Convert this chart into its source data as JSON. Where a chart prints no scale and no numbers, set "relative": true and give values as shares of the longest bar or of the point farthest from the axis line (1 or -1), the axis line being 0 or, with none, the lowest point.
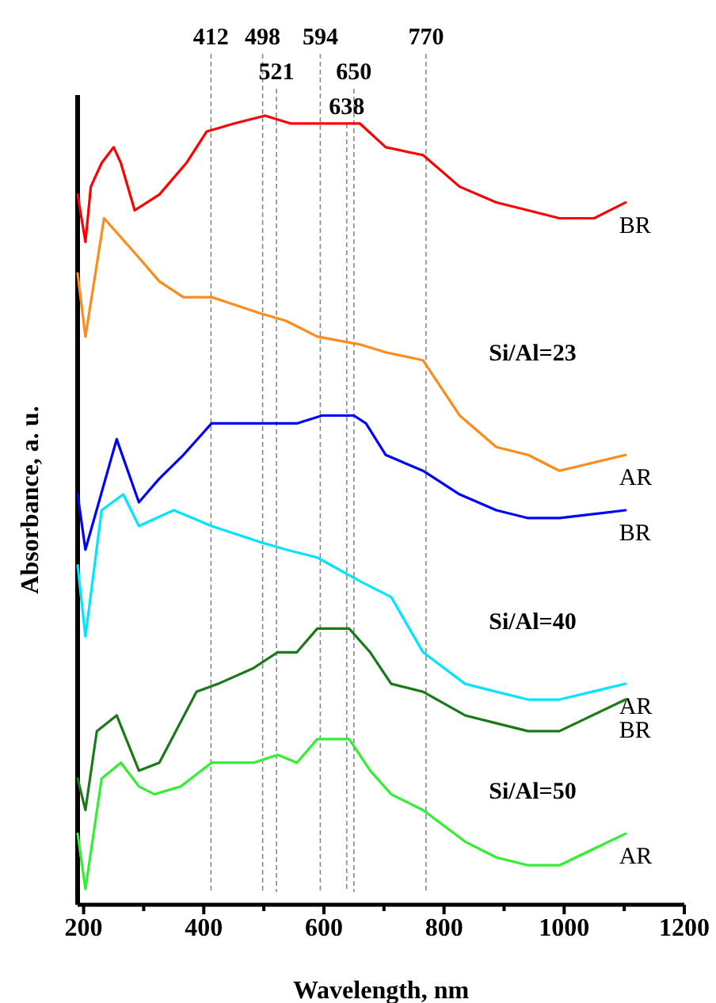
{
  "chart_data": {
    "type": "line",
    "relative": true,
    "xlabel": "Wavelength, nm",
    "ylabel": "Absorbance, a. u.",
    "xlim": [
      190,
      1200
    ],
    "xticks": [
      200,
      {
        "value": 300,
        "label": null
      },
      400,
      {
        "value": 500,
        "label": null
      },
      600,
      {
        "value": 700,
        "label": null
      },
      800,
      {
        "value": 900,
        "label": null
      },
      1000,
      {
        "value": 1100,
        "label": null
      },
      1200
    ],
    "grid": false,
    "marker": "none",
    "line_style": "solid",
    "annotations": [
      "Si/Al=23",
      "Si/Al=40",
      "Si/Al=50"
    ],
    "ref_lines": [
      {
        "axis": "x",
        "value": 412,
        "label": "412",
        "line_style": "dashed",
        "color": "#888888"
      },
      {
        "axis": "x",
        "value": 498,
        "label": "498",
        "line_style": "dashed",
        "color": "#888888"
      },
      {
        "axis": "x",
        "value": 521,
        "label": "521",
        "line_style": "dashed",
        "color": "#888888"
      },
      {
        "axis": "x",
        "value": 594,
        "label": "594",
        "line_style": "dashed",
        "color": "#888888"
      },
      {
        "axis": "x",
        "value": 650,
        "label": "650",
        "line_style": "dashed",
        "color": "#888888"
      },
      {
        "axis": "x",
        "value": 770,
        "label": "770",
        "line_style": "dashed",
        "color": "#888888"
      },
      {
        "axis": "x",
        "value": 638,
        "label": "638",
        "line_style": "dashed",
        "color": "#888888"
      }
    ],
    "series": [
      {
        "name": "BR",
        "color": "#ff0000",
        "x": [
          190,
          203,
          212,
          230,
          250,
          262,
          285,
          326,
          371,
          405,
          450,
          502,
          545,
          597,
          650,
          660,
          703,
          765,
          826,
          887,
          940,
          992,
          1050,
          1102
        ],
        "values": [
          0.9,
          0.84,
          0.91,
          0.94,
          0.96,
          0.94,
          0.88,
          0.9,
          0.94,
          0.98,
          0.99,
          1.0,
          0.99,
          0.99,
          0.99,
          0.99,
          0.96,
          0.95,
          0.91,
          0.89,
          0.88,
          0.87,
          0.87,
          0.89
        ]
      },
      {
        "name": "AR",
        "color": "#ff8c1a",
        "x": [
          190,
          203,
          234,
          292,
          326,
          366,
          413,
          492,
          537,
          589,
          660,
          703,
          765,
          826,
          887,
          940,
          992,
          1102
        ],
        "values": [
          0.8,
          0.72,
          0.87,
          0.82,
          0.79,
          0.77,
          0.77,
          0.75,
          0.74,
          0.72,
          0.71,
          0.7,
          0.69,
          0.62,
          0.58,
          0.57,
          0.55,
          0.57
        ]
      },
      {
        "name": "BR",
        "color": "#0000ff",
        "x": [
          190,
          203,
          255,
          292,
          326,
          366,
          413,
          455,
          502,
          555,
          597,
          650,
          670,
          703,
          765,
          826,
          887,
          940,
          992,
          1102
        ],
        "values": [
          0.52,
          0.45,
          0.59,
          0.51,
          0.54,
          0.57,
          0.61,
          0.61,
          0.61,
          0.61,
          0.62,
          0.62,
          0.61,
          0.57,
          0.55,
          0.52,
          0.5,
          0.49,
          0.49,
          0.5
        ]
      },
      {
        "name": "AR",
        "color": "#00e5ff",
        "x": [
          190,
          203,
          230,
          266,
          292,
          350,
          413,
          492,
          537,
          589,
          660,
          712,
          765,
          835,
          887,
          940,
          992,
          1102
        ],
        "values": [
          0.43,
          0.34,
          0.5,
          0.52,
          0.48,
          0.5,
          0.48,
          0.46,
          0.45,
          0.44,
          0.41,
          0.39,
          0.32,
          0.28,
          0.27,
          0.26,
          0.26,
          0.28
        ]
      },
      {
        "name": "BR",
        "color": "#1a7a1a",
        "x": [
          190,
          203,
          222,
          255,
          292,
          326,
          388,
          424,
          483,
          523,
          555,
          589,
          642,
          677,
          712,
          765,
          835,
          887,
          940,
          992,
          1102
        ],
        "values": [
          0.16,
          0.12,
          0.22,
          0.24,
          0.17,
          0.18,
          0.27,
          0.28,
          0.3,
          0.32,
          0.32,
          0.35,
          0.35,
          0.32,
          0.28,
          0.27,
          0.24,
          0.23,
          0.22,
          0.22,
          0.26
        ]
      },
      {
        "name": "AR",
        "color": "#33ee33",
        "x": [
          190,
          203,
          230,
          262,
          292,
          318,
          362,
          413,
          483,
          523,
          555,
          589,
          642,
          677,
          712,
          765,
          835,
          887,
          940,
          992,
          1102
        ],
        "values": [
          0.09,
          0.02,
          0.16,
          0.18,
          0.15,
          0.14,
          0.15,
          0.18,
          0.18,
          0.19,
          0.18,
          0.21,
          0.21,
          0.17,
          0.14,
          0.12,
          0.08,
          0.06,
          0.05,
          0.05,
          0.09
        ]
      }
    ]
  }
}
